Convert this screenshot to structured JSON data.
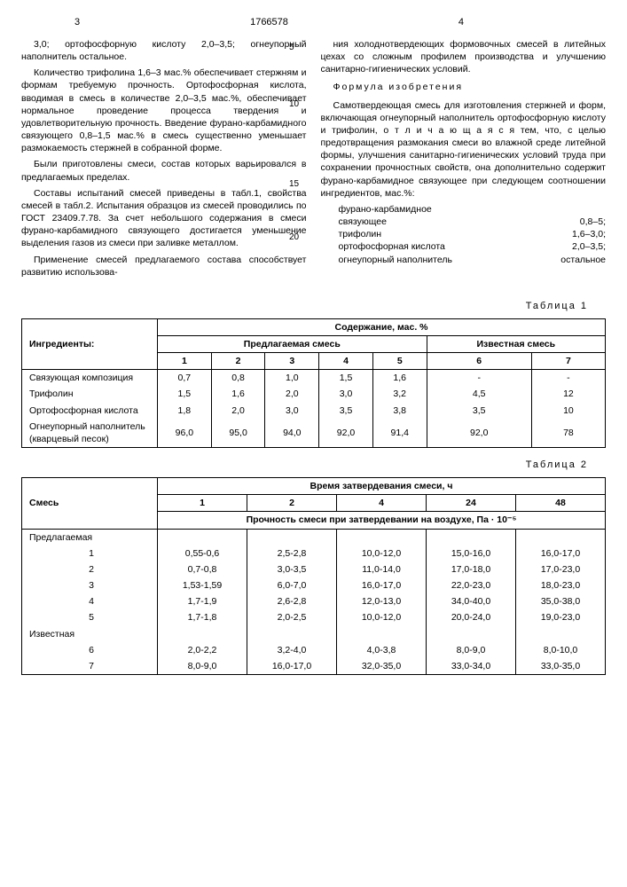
{
  "header": {
    "pageLeft": "3",
    "docNumber": "1766578",
    "pageRight": "4"
  },
  "leftCol": {
    "p1": "3,0; ортофосфорную кислоту 2,0–3,5; огнеупорный наполнитель остальное.",
    "p2": "Количество трифолина 1,6–3 мас.% обеспечивает стержням и формам требуемую прочность. Ортофосфорная кислота, вводимая в смесь в количестве 2,0–3,5 мас.%, обеспечивает нормальное проведение процесса твердения и удовлетворительную прочность. Введение фурано-карбамидного связующего 0,8–1,5 мас.% в смесь существенно уменьшает размокаемость стержней в собранной форме.",
    "p3": "Были приготовлены смеси, состав которых варьировался в предлагаемых пределах.",
    "p4": "Составы испытаний смесей приведены в табл.1, свойства смесей в табл.2. Испытания образцов из смесей проводились по ГОСТ 23409.7.78. За счет небольшого содержания в смеси фурано-карбамидного связующего достигается уменьшение выделения газов из смеси при заливке металлом.",
    "p5": "Применение смесей предлагаемого состава способствует развитию использова-"
  },
  "rightCol": {
    "p1": "ния холоднотвердеющих формовочных смесей в литейных цехах со сложным профилем производства и улучшению санитарно-гигиенических условий.",
    "heading": "Формула изобретения",
    "p2": "Самотвердеющая смесь для изготовления стержней и форм, включающая огнеупорный наполнитель ортофосфорную кислоту и трифолин, о т л и ч а ю щ а я с я тем, что, с целью предотвращения размокания смеси во влажной среде литейной формы, улучшения санитарно-гигиенических условий труда при сохранении прочностных свойств, она дополнительно содержит фурано-карбамидное связующее при следующем соотношении ингредиентов, мас.%:",
    "ingredients": [
      {
        "name": "фурано-карбамидное",
        "value": ""
      },
      {
        "name": "связующее",
        "value": "0,8–5;"
      },
      {
        "name": "трифолин",
        "value": "1,6–3,0;"
      },
      {
        "name": "ортофосфорная кислота",
        "value": "2,0–3,5;"
      },
      {
        "name": "огнеупорный наполнитель",
        "value": "остальное"
      }
    ]
  },
  "lineMarkers": {
    "m5": "5",
    "m10": "10",
    "m15": "15",
    "m20": "20"
  },
  "table1": {
    "caption": "Таблица 1",
    "headers": {
      "ingredients": "Ингредиенты:",
      "content": "Содержание, мас. %",
      "proposed": "Предлагаемая смесь",
      "known": "Известная смесь",
      "cols": [
        "1",
        "2",
        "3",
        "4",
        "5",
        "6",
        "7"
      ]
    },
    "rows": [
      {
        "label": "Связующая композиция",
        "vals": [
          "0,7",
          "0,8",
          "1,0",
          "1,5",
          "1,6",
          "-",
          "-"
        ]
      },
      {
        "label": "Трифолин",
        "vals": [
          "1,5",
          "1,6",
          "2,0",
          "3,0",
          "3,2",
          "4,5",
          "12"
        ]
      },
      {
        "label": "Ортофосфорная кислота",
        "vals": [
          "1,8",
          "2,0",
          "3,0",
          "3,5",
          "3,8",
          "3,5",
          "10"
        ]
      },
      {
        "label": "Огнеупорный наполнитель (кварцевый песок)",
        "vals": [
          "96,0",
          "95,0",
          "94,0",
          "92,0",
          "91,4",
          "92,0",
          "78"
        ]
      }
    ]
  },
  "table2": {
    "caption": "Таблица 2",
    "headers": {
      "mix": "Смесь",
      "time": "Время затвердевания смеси, ч",
      "cols": [
        "1",
        "2",
        "4",
        "24",
        "48"
      ],
      "strength": "Прочность смеси при затвердевании на воздухе, Па · 10⁻⁵"
    },
    "rows": [
      {
        "label": "Предлагаемая",
        "vals": [
          "",
          "",
          "",
          "",
          ""
        ]
      },
      {
        "label": "1",
        "vals": [
          "0,55-0,6",
          "2,5-2,8",
          "10,0-12,0",
          "15,0-16,0",
          "16,0-17,0"
        ]
      },
      {
        "label": "2",
        "vals": [
          "0,7-0,8",
          "3,0-3,5",
          "11,0-14,0",
          "17,0-18,0",
          "17,0-23,0"
        ]
      },
      {
        "label": "3",
        "vals": [
          "1,53-1,59",
          "6,0-7,0",
          "16,0-17,0",
          "22,0-23,0",
          "18,0-23,0"
        ]
      },
      {
        "label": "4",
        "vals": [
          "1,7-1,9",
          "2,6-2,8",
          "12,0-13,0",
          "34,0-40,0",
          "35,0-38,0"
        ]
      },
      {
        "label": "5",
        "vals": [
          "1,7-1,8",
          "2,0-2,5",
          "10,0-12,0",
          "20,0-24,0",
          "19,0-23,0"
        ]
      },
      {
        "label": "Известная",
        "vals": [
          "",
          "",
          "",
          "",
          ""
        ]
      },
      {
        "label": "6",
        "vals": [
          "2,0-2,2",
          "3,2-4,0",
          "4,0-3,8",
          "8,0-9,0",
          "8,0-10,0"
        ]
      },
      {
        "label": "7",
        "vals": [
          "8,0-9,0",
          "16,0-17,0",
          "32,0-35,0",
          "33,0-34,0",
          "33,0-35,0"
        ]
      }
    ]
  }
}
